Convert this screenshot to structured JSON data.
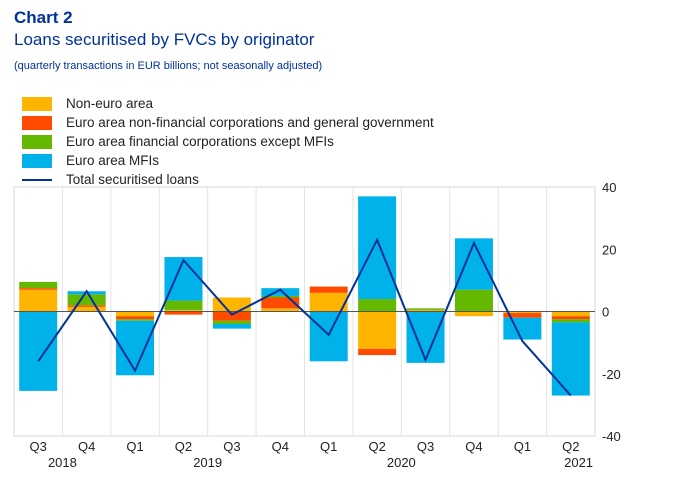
{
  "header": {
    "title": "Chart 2",
    "subtitle": "Loans securitised by FVCs by originator",
    "note": "(quarterly transactions in EUR billions; not seasonally adjusted)"
  },
  "colors": {
    "non_euro": "#FFB400",
    "nfc_gov": "#FF4B00",
    "ofi": "#65B800",
    "mfi": "#00B1EA",
    "total": "#003299"
  },
  "chart_data": {
    "type": "bar",
    "stacked": true,
    "categories": [
      "Q3",
      "Q4",
      "Q1",
      "Q2",
      "Q3",
      "Q4",
      "Q1",
      "Q2",
      "Q3",
      "Q4",
      "Q1",
      "Q2"
    ],
    "years": [
      {
        "label": "2018",
        "span": [
          0,
          1
        ]
      },
      {
        "label": "2019",
        "span": [
          2,
          5
        ]
      },
      {
        "label": "2020",
        "span": [
          6,
          9
        ]
      },
      {
        "label": "2021",
        "span": [
          10,
          11
        ]
      }
    ],
    "ylim": [
      -40,
      40
    ],
    "yticks": [
      40,
      20,
      0,
      -20,
      -40
    ],
    "legend_position": "top-left",
    "series": [
      {
        "name": "Non-euro area",
        "color_key": "non_euro",
        "values": [
          7,
          1.5,
          -1.5,
          0.5,
          4.5,
          1,
          6,
          -12,
          0.5,
          -1.5,
          -0.5,
          -1.5
        ]
      },
      {
        "name": "Euro area non-financial corporations and general government",
        "color_key": "nfc_gov",
        "values": [
          0.5,
          0.5,
          -1,
          -1,
          -3,
          3.5,
          2,
          -2,
          0,
          0,
          -1.5,
          -1
        ]
      },
      {
        "name": "Euro area financial corporations except MFIs",
        "color_key": "ofi",
        "values": [
          2,
          3.5,
          -0.5,
          3,
          -1,
          0.5,
          0,
          4,
          0.5,
          7,
          0,
          -1
        ]
      },
      {
        "name": "Euro area MFIs",
        "color_key": "mfi",
        "values": [
          -25.5,
          1,
          -17.5,
          14,
          -1.5,
          2.5,
          -16,
          33,
          -16.5,
          16.5,
          -7,
          -23.5
        ]
      }
    ],
    "line": {
      "name": "Total securitised loans",
      "color_key": "total",
      "values": [
        -16,
        6.5,
        -19,
        16.5,
        -1,
        7,
        -7.5,
        23,
        -15.5,
        22,
        -9.5,
        -27
      ]
    }
  }
}
